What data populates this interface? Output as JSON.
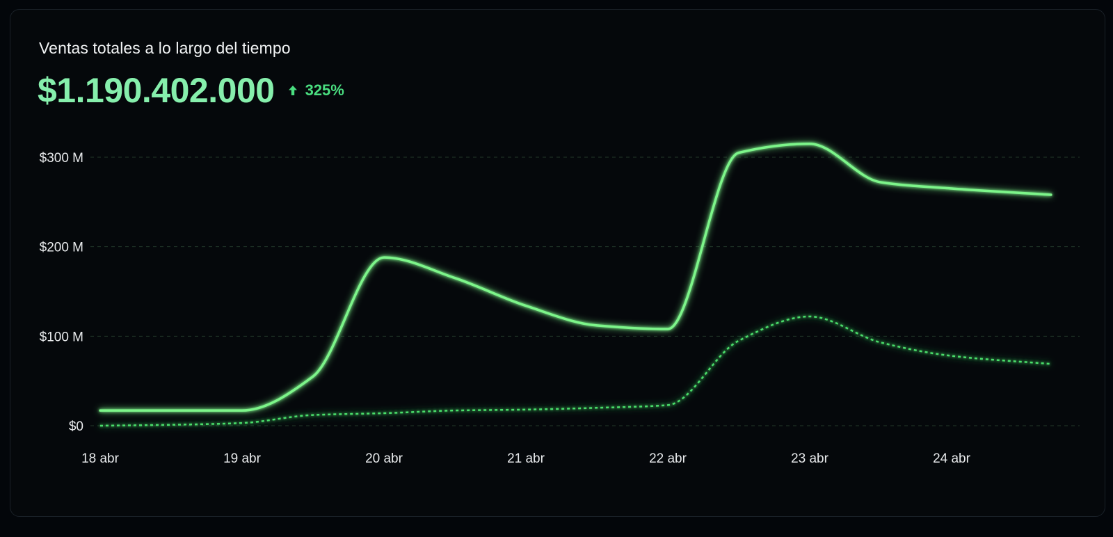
{
  "card": {
    "title": "Ventas totales a lo largo del tiempo",
    "total": "$1.190.402.000",
    "change": "325%",
    "change_icon": "arrow-up-icon"
  },
  "colors": {
    "background": "#05080b",
    "accent": "#86efac",
    "line_primary": "#7df58a",
    "line_secondary": "#4ade6a",
    "grid": "#22382a",
    "axis_text": "#e8eaec"
  },
  "chart_data": {
    "type": "line",
    "categories": [
      "18 abr",
      "19 abr",
      "20 abr",
      "21 abr",
      "22 abr",
      "23 abr",
      "24 abr"
    ],
    "x": [
      0,
      0.5,
      1,
      1.5,
      2,
      2.5,
      3,
      3.5,
      4,
      4.5,
      5,
      5.5,
      6,
      6.7
    ],
    "series": [
      {
        "style": "solid",
        "values": [
          17,
          17,
          17,
          55,
          188,
          165,
          134,
          112,
          108,
          305,
          315,
          272,
          265,
          258
        ]
      },
      {
        "style": "dotted",
        "values": [
          0,
          1,
          3,
          12,
          14,
          17,
          18,
          20,
          23,
          95,
          122,
          93,
          78,
          69
        ]
      }
    ],
    "yticks": [
      {
        "value": 0,
        "label": "$0"
      },
      {
        "value": 100,
        "label": "$100 M"
      },
      {
        "value": 200,
        "label": "$200 M"
      },
      {
        "value": 300,
        "label": "$300 M"
      }
    ],
    "ylim": [
      0,
      300
    ],
    "grid": true,
    "legend": "none"
  }
}
